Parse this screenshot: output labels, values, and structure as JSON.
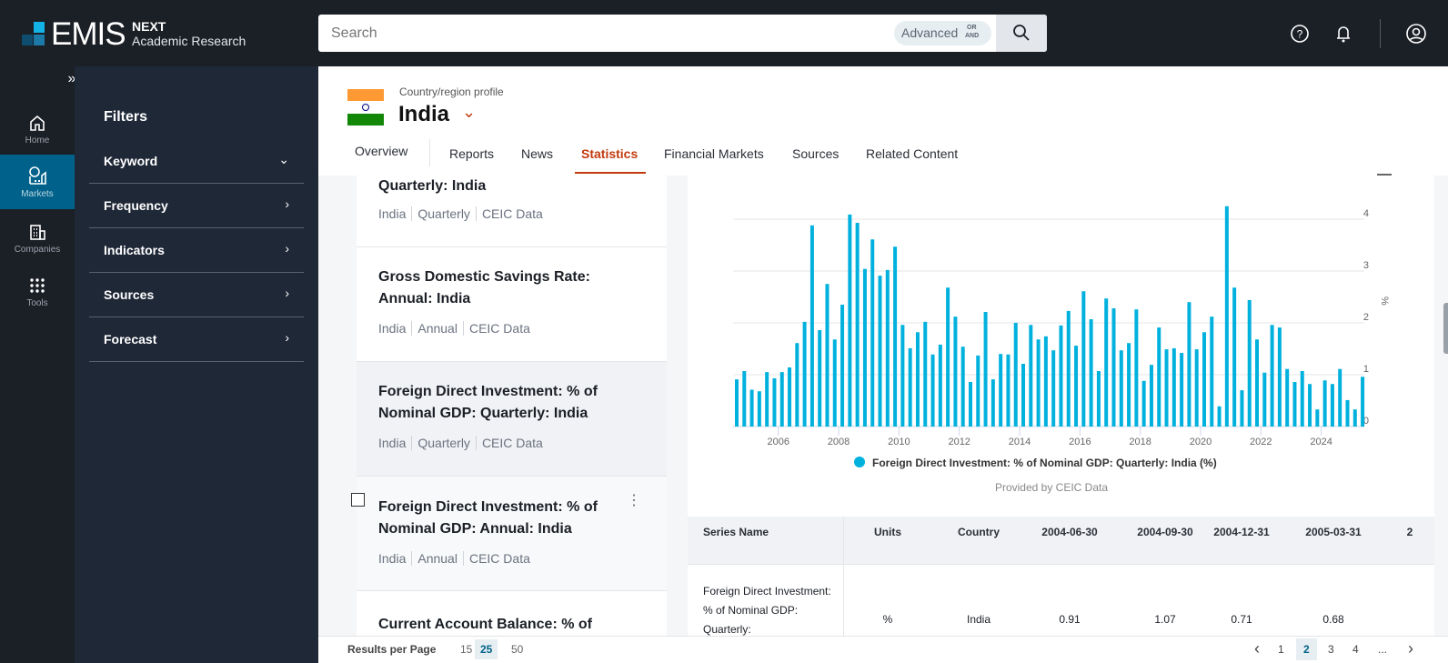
{
  "app": {
    "brand": "EMIS",
    "product": "NEXT",
    "subtitle": "Academic Research"
  },
  "search": {
    "placeholder": "Search",
    "advanced_label": "Advanced",
    "or_label": "OR",
    "and_label": "AND"
  },
  "header_icons": [
    "help-icon",
    "bell-icon",
    "user-icon"
  ],
  "rail": {
    "items": [
      {
        "label": "Home",
        "icon": "home-icon"
      },
      {
        "label": "Markets",
        "icon": "markets-icon",
        "active": true
      },
      {
        "label": "Companies",
        "icon": "companies-icon"
      },
      {
        "label": "Tools",
        "icon": "grid-icon"
      }
    ]
  },
  "filters": {
    "title": "Filters",
    "items": [
      {
        "label": "Keyword",
        "state": "expanded"
      },
      {
        "label": "Frequency"
      },
      {
        "label": "Indicators"
      },
      {
        "label": "Sources"
      },
      {
        "label": "Forecast"
      }
    ]
  },
  "profile": {
    "caption": "Country/region profile",
    "country": "India"
  },
  "tabs": [
    {
      "label": "Overview"
    },
    {
      "label": "Reports"
    },
    {
      "label": "News"
    },
    {
      "label": "Statistics",
      "active": true
    },
    {
      "label": "Financial Markets"
    },
    {
      "label": "Sources"
    },
    {
      "label": "Related Content"
    }
  ],
  "series_list": [
    {
      "title": "Quarterly: India",
      "meta": [
        "India",
        "Quarterly",
        "CEIC Data"
      ]
    },
    {
      "title": "Gross Domestic Savings Rate: Annual: India",
      "meta": [
        "India",
        "Annual",
        "CEIC Data"
      ]
    },
    {
      "title": "Foreign Direct Investment: % of Nominal GDP: Quarterly: India",
      "meta": [
        "India",
        "Quarterly",
        "CEIC Data"
      ],
      "selected": true
    },
    {
      "title": "Foreign Direct Investment: % of Nominal GDP: Annual: India",
      "meta": [
        "India",
        "Annual",
        "CEIC Data"
      ],
      "hovered": true
    },
    {
      "title": "Current Account Balance: % of",
      "meta": []
    }
  ],
  "chart_data": {
    "type": "bar",
    "color": "#00b1de",
    "ylabel": "%",
    "ylim": [
      0,
      4
    ],
    "yticks": [
      0,
      1,
      2,
      3,
      4
    ],
    "xticks": [
      "2006",
      "2008",
      "2010",
      "2012",
      "2014",
      "2016",
      "2018",
      "2020",
      "2022",
      "2024"
    ],
    "grid": true,
    "legend_position": "bottom",
    "series": [
      {
        "name": "Foreign Direct Investment: % of Nominal GDP: Quarterly: India (%)",
        "x": [
          "2004-06-30",
          "2004-09-30",
          "2004-12-31",
          "2005-03-31",
          "2005-06-30",
          "2005-09-30",
          "2005-12-31",
          "2006-03-31",
          "2006-06-30",
          "2006-09-30",
          "2006-12-31",
          "2007-03-31",
          "2007-06-30",
          "2007-09-30",
          "2007-12-31",
          "2008-03-31",
          "2008-06-30",
          "2008-09-30",
          "2008-12-31",
          "2009-03-31",
          "2009-06-30",
          "2009-09-30",
          "2009-12-31",
          "2010-03-31",
          "2010-06-30",
          "2010-09-30",
          "2010-12-31",
          "2011-03-31",
          "2011-06-30",
          "2011-09-30",
          "2011-12-31",
          "2012-03-31",
          "2012-06-30",
          "2012-09-30",
          "2012-12-31",
          "2013-03-31",
          "2013-06-30",
          "2013-09-30",
          "2013-12-31",
          "2014-03-31",
          "2014-06-30",
          "2014-09-30",
          "2014-12-31",
          "2015-03-31",
          "2015-06-30",
          "2015-09-30",
          "2015-12-31",
          "2016-03-31",
          "2016-06-30",
          "2016-09-30",
          "2016-12-31",
          "2017-03-31",
          "2017-06-30",
          "2017-09-30",
          "2017-12-31",
          "2018-03-31",
          "2018-06-30",
          "2018-09-30",
          "2018-12-31",
          "2019-03-31",
          "2019-06-30",
          "2019-09-30",
          "2019-12-31",
          "2020-03-31",
          "2020-06-30",
          "2020-09-30",
          "2020-12-31",
          "2021-03-31",
          "2021-06-30",
          "2021-09-30",
          "2021-12-31",
          "2022-03-31",
          "2022-06-30",
          "2022-09-30",
          "2022-12-31",
          "2023-03-31",
          "2023-06-30",
          "2023-09-30",
          "2023-12-31",
          "2024-03-31",
          "2024-06-30",
          "2024-09-30",
          "2024-12-31",
          "2025-03-31"
        ],
        "values": [
          0.91,
          1.07,
          0.71,
          0.68,
          1.05,
          0.93,
          1.05,
          1.14,
          1.61,
          2.02,
          3.88,
          1.86,
          2.75,
          1.68,
          2.35,
          4.09,
          3.93,
          3.04,
          3.61,
          2.91,
          3.02,
          3.47,
          1.96,
          1.51,
          1.82,
          2.02,
          1.39,
          1.58,
          2.68,
          2.12,
          1.54,
          0.86,
          1.37,
          2.21,
          0.91,
          1.4,
          1.39,
          2.0,
          1.21,
          1.96,
          1.68,
          1.74,
          1.47,
          1.95,
          2.23,
          1.56,
          2.61,
          2.07,
          1.07,
          2.47,
          2.28,
          1.47,
          1.61,
          2.26,
          0.88,
          1.19,
          1.91,
          1.49,
          1.51,
          1.42,
          2.4,
          1.49,
          1.82,
          2.12,
          0.39,
          4.25,
          2.68,
          0.7,
          2.44,
          1.68,
          1.04,
          1.96,
          1.91,
          1.11,
          0.86,
          1.07,
          0.82,
          0.33,
          0.89,
          0.82,
          1.11,
          0.51,
          0.33,
          0.96
        ]
      }
    ],
    "source_note": "Provided by CEIC Data"
  },
  "table": {
    "headers": [
      "Series Name",
      "Units",
      "Country",
      "2004-06-30",
      "2004-09-30",
      "2004-12-31",
      "2005-03-31",
      "2"
    ],
    "row": {
      "series_name": "Foreign Direct Investment: % of Nominal GDP: Quarterly:",
      "units": "%",
      "country": "India",
      "values": [
        "0.91",
        "1.07",
        "0.71",
        "0.68"
      ]
    }
  },
  "pagination": {
    "label": "Results per Page",
    "sizes": [
      "15",
      "25",
      "50"
    ],
    "selected_size": "25",
    "pages": [
      "1",
      "2",
      "3",
      "4",
      "..."
    ],
    "current_page": "2"
  },
  "colors": {
    "topbar": "#1b1f26",
    "accent": "#00628a",
    "active_tab": "#c23b0f",
    "bars": "#00b1de"
  }
}
